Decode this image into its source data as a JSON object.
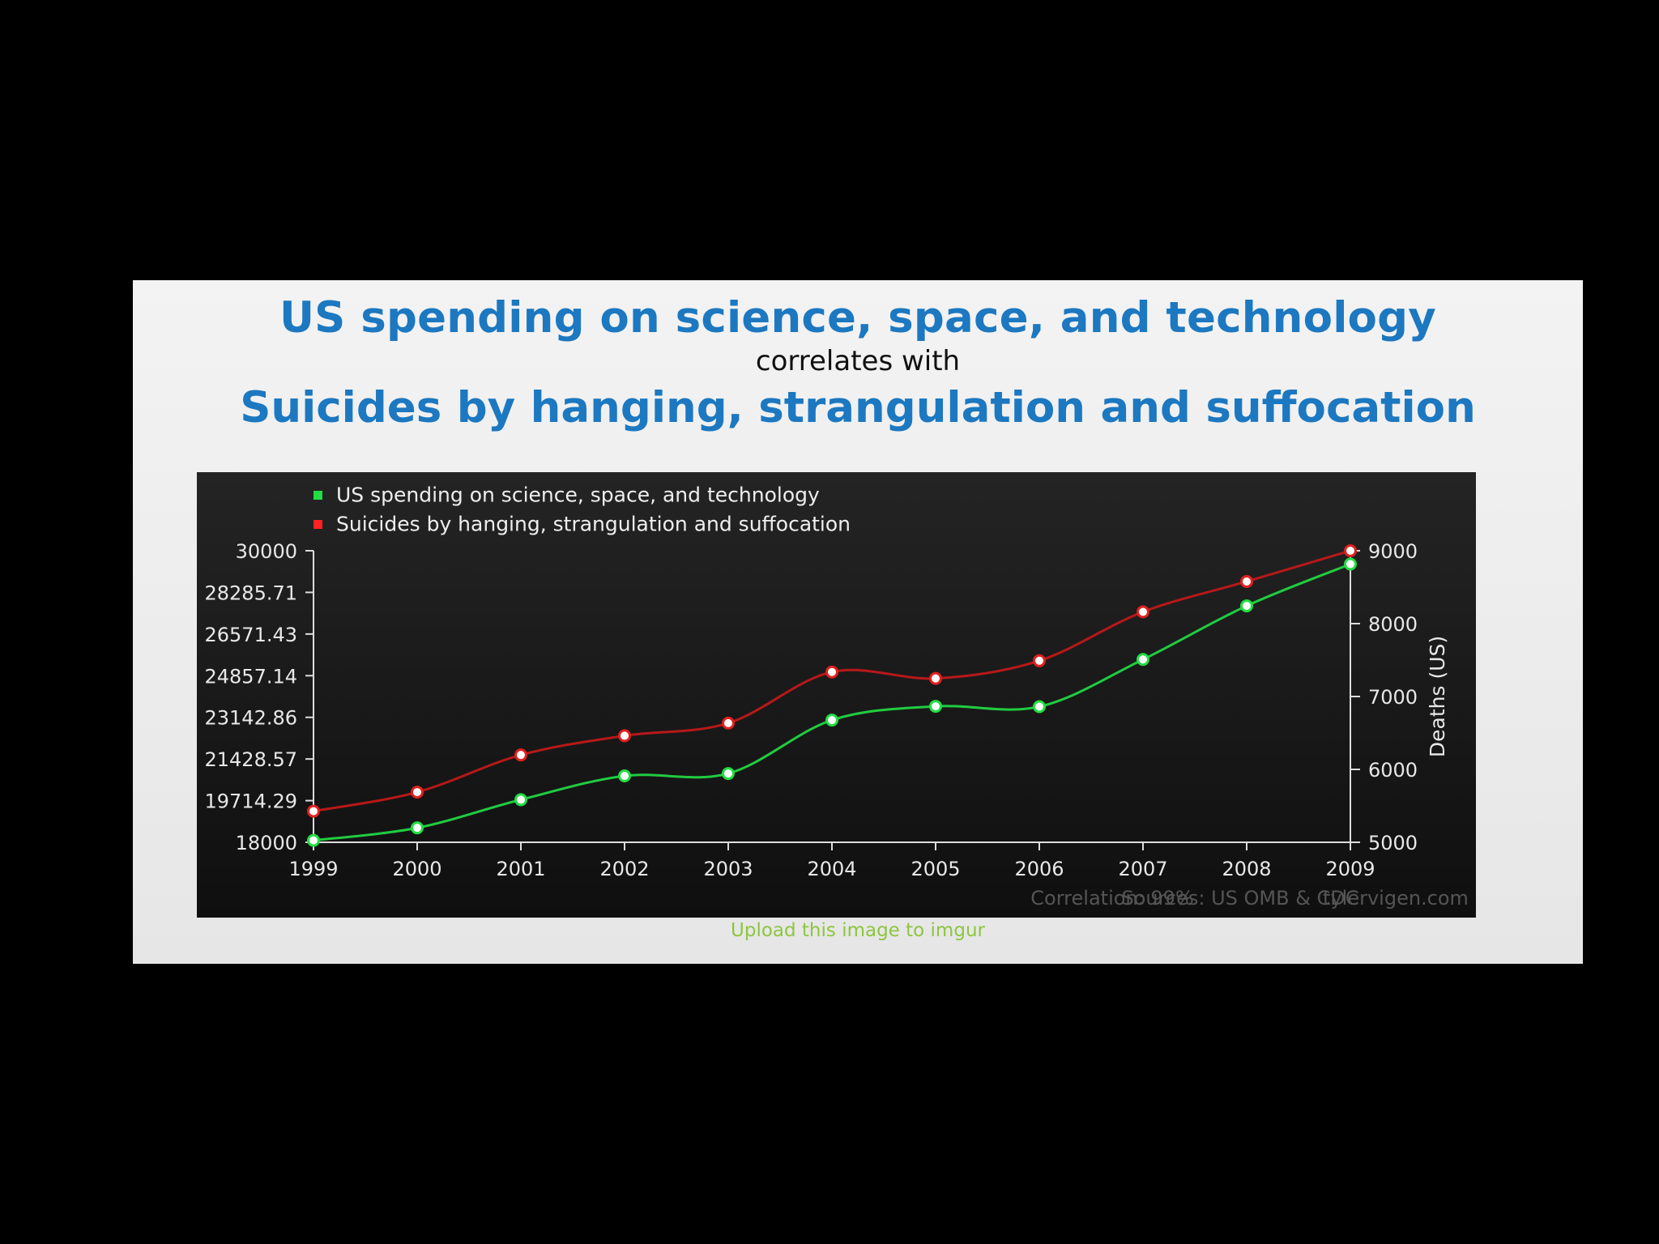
{
  "header": {
    "title_top": "US spending on science, space, and technology",
    "title_mid": "correlates with",
    "title_bottom": "Suicides by hanging, strangulation and suffocation"
  },
  "footer": {
    "upload_link": "Upload this image to imgur"
  },
  "chart_data": {
    "type": "line",
    "x": [
      1999,
      2000,
      2001,
      2002,
      2003,
      2004,
      2005,
      2006,
      2007,
      2008,
      2009
    ],
    "left_axis": {
      "label": "",
      "ylim": [
        18000,
        30000
      ],
      "ticks": [
        "30000",
        "28285.71",
        "26571.43",
        "24857.14",
        "23142.86",
        "21428.57",
        "19714.29",
        "18000"
      ],
      "tick_values": [
        30000,
        28285.71,
        26571.43,
        24857.14,
        23142.86,
        21428.57,
        19714.29,
        18000
      ]
    },
    "right_axis": {
      "label": "Deaths (US)",
      "ylim": [
        5000,
        9000
      ],
      "ticks": [
        "9000",
        "8000",
        "7000",
        "6000",
        "5000"
      ],
      "tick_values": [
        9000,
        8000,
        7000,
        6000,
        5000
      ]
    },
    "series": [
      {
        "name": "US spending on science, space, and technology",
        "color": "#22dd44",
        "axis": "left",
        "values": [
          18079,
          18594,
          19753,
          20734,
          20831,
          23029,
          23597,
          23584,
          25525,
          27731,
          29449
        ]
      },
      {
        "name": "Suicides by hanging, strangulation and suffocation",
        "color": "#e02020",
        "axis": "right",
        "values": [
          5427,
          5688,
          6198,
          6462,
          6635,
          7336,
          7248,
          7491,
          8161,
          8578,
          9000
        ]
      }
    ],
    "legend_position": "top-left",
    "grid": false,
    "annotations": [
      "Correlation: 99%",
      "Sources: US OMB & CDC",
      "tylervigen.com"
    ]
  }
}
